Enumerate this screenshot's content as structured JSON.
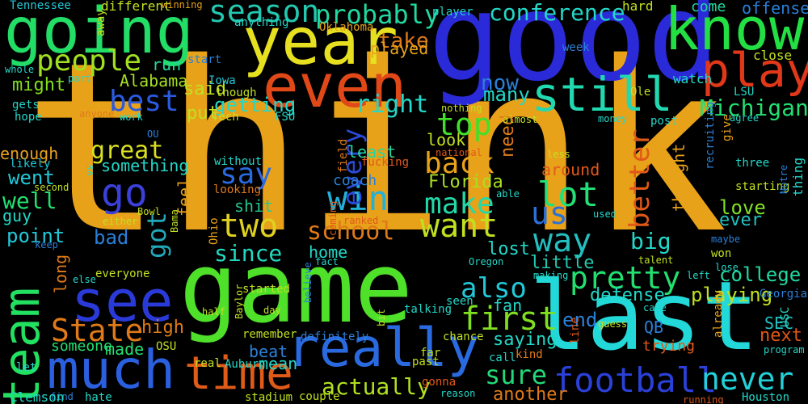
{
  "words": [
    {
      "text": "think",
      "color": "#e8a21a"
    },
    {
      "text": "good",
      "color": "#2a2ad8"
    },
    {
      "text": "game",
      "color": "#4fe02a"
    },
    {
      "text": "last",
      "color": "#22d8d8"
    },
    {
      "text": "going",
      "color": "#22dd66"
    },
    {
      "text": "year",
      "color": "#e6e020"
    },
    {
      "text": "even",
      "color": "#e04818"
    },
    {
      "text": "know",
      "color": "#22e044"
    },
    {
      "text": "play",
      "color": "#e03818"
    },
    {
      "text": "still",
      "color": "#22d8b0"
    },
    {
      "text": "people",
      "color": "#a0e020"
    },
    {
      "text": "season",
      "color": "#22c8b0"
    },
    {
      "text": "probably",
      "color": "#22d8a0"
    },
    {
      "text": "conference",
      "color": "#22d8c8"
    },
    {
      "text": "really",
      "color": "#2a6ae0"
    },
    {
      "text": "much",
      "color": "#2a60e0"
    },
    {
      "text": "see",
      "color": "#2a3ad8"
    },
    {
      "text": "time",
      "color": "#e05a18"
    },
    {
      "text": "team",
      "color": "#22e060"
    },
    {
      "text": "football",
      "color": "#2a40d8"
    },
    {
      "text": "never",
      "color": "#22d0d8"
    },
    {
      "text": "pretty",
      "color": "#22e070"
    },
    {
      "text": "first",
      "color": "#80e020"
    },
    {
      "text": "also",
      "color": "#22c8d8"
    },
    {
      "text": "State",
      "color": "#e07a18"
    },
    {
      "text": "win",
      "color": "#22b0d8"
    },
    {
      "text": "go",
      "color": "#3a40d8"
    },
    {
      "text": "two",
      "color": "#e0d020"
    },
    {
      "text": "want",
      "color": "#c0e020"
    },
    {
      "text": "make",
      "color": "#22d8a8"
    },
    {
      "text": "back",
      "color": "#e8a21a"
    },
    {
      "text": "top",
      "color": "#40e028"
    },
    {
      "text": "lot",
      "color": "#22e078"
    },
    {
      "text": "way",
      "color": "#22c0c0"
    },
    {
      "text": "us",
      "color": "#2a70d8"
    },
    {
      "text": "best",
      "color": "#2a5ae0"
    },
    {
      "text": "say",
      "color": "#2a6ae0"
    },
    {
      "text": "every",
      "color": "#2a4ad8"
    },
    {
      "text": "school",
      "color": "#e07a18"
    },
    {
      "text": "great",
      "color": "#d8e020"
    },
    {
      "text": "right",
      "color": "#22d8c8"
    },
    {
      "text": "Michigan",
      "color": "#22e070"
    },
    {
      "text": "better",
      "color": "#e05818"
    },
    {
      "text": "got",
      "color": "#22a8b8"
    },
    {
      "text": "sure",
      "color": "#22d878"
    },
    {
      "text": "actually",
      "color": "#b0e020"
    },
    {
      "text": "college",
      "color": "#22d8a0"
    },
    {
      "text": "since",
      "color": "#22d8c0"
    },
    {
      "text": "take",
      "color": "#e07a18"
    },
    {
      "text": "now",
      "color": "#2a80d8"
    },
    {
      "text": "Alabama",
      "color": "#a8e020"
    },
    {
      "text": "many",
      "color": "#22d8c8"
    },
    {
      "text": "getting",
      "color": "#22d8c8"
    },
    {
      "text": "big",
      "color": "#22d8c8"
    },
    {
      "text": "Florida",
      "color": "#a8e020"
    },
    {
      "text": "played",
      "color": "#e8a21a"
    },
    {
      "text": "said",
      "color": "#c0e020"
    },
    {
      "text": "put",
      "color": "#c0e020"
    },
    {
      "text": "run",
      "color": "#22d8a0"
    },
    {
      "text": "might",
      "color": "#80e020"
    },
    {
      "text": "look",
      "color": "#c0e020"
    },
    {
      "text": "least",
      "color": "#22d8a0"
    },
    {
      "text": "need",
      "color": "#e07a18"
    },
    {
      "text": "around",
      "color": "#e05818"
    },
    {
      "text": "thought",
      "color": "#e8a21a"
    },
    {
      "text": "love",
      "color": "#80e020"
    },
    {
      "text": "ever",
      "color": "#22c0c0"
    },
    {
      "text": "enough",
      "color": "#e8a21a"
    },
    {
      "text": "something",
      "color": "#22d8c8"
    },
    {
      "text": "went",
      "color": "#22c8d8"
    },
    {
      "text": "well",
      "color": "#22e070"
    },
    {
      "text": "point",
      "color": "#22c8d8"
    },
    {
      "text": "coach",
      "color": "#2a80d8"
    },
    {
      "text": "bad",
      "color": "#2a80d8"
    },
    {
      "text": "feel",
      "color": "#e8a21a"
    },
    {
      "text": "shit",
      "color": "#22c890"
    },
    {
      "text": "home",
      "color": "#22d8c8"
    },
    {
      "text": "lost",
      "color": "#22d8c8"
    },
    {
      "text": "little",
      "color": "#22c8b0"
    },
    {
      "text": "fan",
      "color": "#22d8c8"
    },
    {
      "text": "end",
      "color": "#2a80d8"
    },
    {
      "text": "defense",
      "color": "#22d8c8"
    },
    {
      "text": "playing",
      "color": "#c0e020"
    },
    {
      "text": "next",
      "color": "#e05818"
    },
    {
      "text": "SEC",
      "color": "#22c0c0"
    },
    {
      "text": "high",
      "color": "#e07a18"
    },
    {
      "text": "made",
      "color": "#22e070"
    },
    {
      "text": "someone",
      "color": "#22e070"
    },
    {
      "text": "beat",
      "color": "#2a80d8"
    },
    {
      "text": "saying",
      "color": "#22d8c8"
    },
    {
      "text": "long",
      "color": "#e07a18"
    },
    {
      "text": "mean",
      "color": "#22d8c8"
    },
    {
      "text": "another",
      "color": "#e07a18"
    },
    {
      "text": "QB",
      "color": "#2a80d8"
    },
    {
      "text": "trying",
      "color": "#e05818"
    },
    {
      "text": "offense",
      "color": "#2a80d8"
    },
    {
      "text": "come",
      "color": "#22d8a0"
    },
    {
      "text": "hard",
      "color": "#c0e020"
    },
    {
      "text": "close",
      "color": "#c0e020"
    },
    {
      "text": "watch",
      "color": "#22d8c8"
    },
    {
      "text": "week",
      "color": "#2a80d8"
    },
    {
      "text": "player",
      "color": "#22d8c8"
    },
    {
      "text": "different",
      "color": "#c0e020"
    },
    {
      "text": "winning",
      "color": "#e8a21a"
    },
    {
      "text": "Tennessee",
      "color": "#22c8d8"
    },
    {
      "text": "away",
      "color": "#c0e020"
    },
    {
      "text": "anything",
      "color": "#22d8c8"
    },
    {
      "text": "Oklahoma",
      "color": "#e8a21a"
    },
    {
      "text": "whole",
      "color": "#22d8c8"
    },
    {
      "text": "part",
      "color": "#22d8c8"
    },
    {
      "text": "start",
      "color": "#2a80d8"
    },
    {
      "text": "Iowa",
      "color": "#22c8d8"
    },
    {
      "text": "though",
      "color": "#c0e020"
    },
    {
      "text": "Tech",
      "color": "#c0e020"
    },
    {
      "text": "FSU",
      "color": "#22d8c8"
    },
    {
      "text": "gets",
      "color": "#22d8c8"
    },
    {
      "text": "hope",
      "color": "#22d8c8"
    },
    {
      "text": "anyone",
      "color": "#e07a18"
    },
    {
      "text": "work",
      "color": "#22d8c8"
    },
    {
      "text": "OU",
      "color": "#2a80d8"
    },
    {
      "text": "nothing",
      "color": "#c0e020"
    },
    {
      "text": "almost",
      "color": "#c0e020"
    },
    {
      "text": "money",
      "color": "#22d8c8"
    },
    {
      "text": "post",
      "color": "#22d8c8"
    },
    {
      "text": "agree",
      "color": "#22d8c8"
    },
    {
      "text": "give",
      "color": "#e8a21a"
    },
    {
      "text": "recruiting",
      "color": "#2a80d8"
    },
    {
      "text": "Ole",
      "color": "#c0e020"
    },
    {
      "text": "LSU",
      "color": "#22d8c8"
    },
    {
      "text": "likely",
      "color": "#22c8d8"
    },
    {
      "text": "second",
      "color": "#c0e020"
    },
    {
      "text": "guy",
      "color": "#22d8c8"
    },
    {
      "text": "vs",
      "color": "#22d8c8"
    },
    {
      "text": "without",
      "color": "#22d8c8"
    },
    {
      "text": "looking",
      "color": "#e07a18"
    },
    {
      "text": "national",
      "color": "#e05818"
    },
    {
      "text": "fucking",
      "color": "#e05818"
    },
    {
      "text": "field",
      "color": "#e07a18"
    },
    {
      "text": "less",
      "color": "#c0e020"
    },
    {
      "text": "able",
      "color": "#22d8c8"
    },
    {
      "text": "used",
      "color": "#22d8c8"
    },
    {
      "text": "three",
      "color": "#22d8c8"
    },
    {
      "text": "starting",
      "color": "#c0e020"
    },
    {
      "text": "Notre",
      "color": "#2a80d8"
    },
    {
      "text": "thing",
      "color": "#22d8c8"
    },
    {
      "text": "keep",
      "color": "#2a80d8"
    },
    {
      "text": "either",
      "color": "#c0e020"
    },
    {
      "text": "Bowl",
      "color": "#c0e020"
    },
    {
      "text": "Bama",
      "color": "#c0e020"
    },
    {
      "text": "Ohio",
      "color": "#e8a21a"
    },
    {
      "text": "coming",
      "color": "#e05818"
    },
    {
      "text": "ranked",
      "color": "#e05818"
    },
    {
      "text": "maybe",
      "color": "#2a80d8"
    },
    {
      "text": "won",
      "color": "#c0e020"
    },
    {
      "text": "talent",
      "color": "#c0e020"
    },
    {
      "text": "lose",
      "color": "#22d8c8"
    },
    {
      "text": "left",
      "color": "#22d8c8"
    },
    {
      "text": "Oregon",
      "color": "#22d8c8"
    },
    {
      "text": "making",
      "color": "#22d8c8"
    },
    {
      "text": "fact",
      "color": "#22d8c8"
    },
    {
      "text": "believe",
      "color": "#2a80d8"
    },
    {
      "text": "else",
      "color": "#22d8c8"
    },
    {
      "text": "everyone",
      "color": "#c0e020"
    },
    {
      "text": "started",
      "color": "#c0e020"
    },
    {
      "text": "Baylor",
      "color": "#c0e020"
    },
    {
      "text": "half",
      "color": "#c0e020"
    },
    {
      "text": "day",
      "color": "#c0e020"
    },
    {
      "text": "seen",
      "color": "#22d8c8"
    },
    {
      "text": "talking",
      "color": "#22d8c8"
    },
    {
      "text": "came",
      "color": "#22d8c8"
    },
    {
      "text": "guess",
      "color": "#c0e020"
    },
    {
      "text": "Georgia",
      "color": "#2a80d8"
    },
    {
      "text": "already",
      "color": "#e8a21a"
    },
    {
      "text": "Houston",
      "color": "#22d8c8"
    },
    {
      "text": "running",
      "color": "#e05818"
    },
    {
      "text": "program",
      "color": "#22d8c8"
    },
    {
      "text": "USC",
      "color": "#22d8c8"
    },
    {
      "text": "remember",
      "color": "#c0e020"
    },
    {
      "text": "definitely",
      "color": "#2a80d8"
    },
    {
      "text": "OSU",
      "color": "#c0e020"
    },
    {
      "text": "real",
      "color": "#c0e020"
    },
    {
      "text": "Auburn",
      "color": "#22d8c8"
    },
    {
      "text": "let",
      "color": "#22d8c8"
    },
    {
      "text": "hate",
      "color": "#22d8c8"
    },
    {
      "text": "find",
      "color": "#2a80d8"
    },
    {
      "text": "Clemson",
      "color": "#22d8c8"
    },
    {
      "text": "stadium",
      "color": "#c0e020"
    },
    {
      "text": "couple",
      "color": "#c0e020"
    },
    {
      "text": "gonna",
      "color": "#e05818"
    },
    {
      "text": "reason",
      "color": "#22d8c8"
    },
    {
      "text": "bit",
      "color": "#c0e020"
    },
    {
      "text": "far",
      "color": "#c0e020"
    },
    {
      "text": "past",
      "color": "#c0e020"
    },
    {
      "text": "chance",
      "color": "#c0e020"
    },
    {
      "text": "call",
      "color": "#22d8c8"
    },
    {
      "text": "kind",
      "color": "#e07a18"
    },
    {
      "text": "line",
      "color": "#e05818"
    }
  ]
}
